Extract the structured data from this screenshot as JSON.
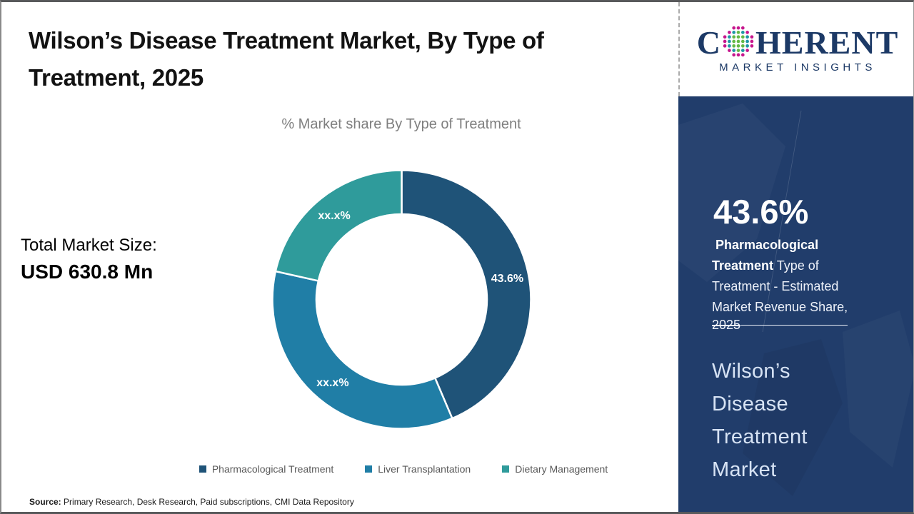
{
  "header": {
    "title": "Wilson’s Disease Treatment Market, By Type of Treatment, 2025",
    "subtitle": "% Market share By Type of Treatment"
  },
  "market_size": {
    "label": "Total Market Size:",
    "value": "USD 630.8 Mn"
  },
  "chart_data": {
    "type": "pie",
    "subtype": "donut",
    "title": "% Market share By Type of Treatment",
    "categories": [
      "Pharmacological Treatment",
      "Liver Transplantation",
      "Dietary Management"
    ],
    "values": [
      43.6,
      34.9,
      21.5
    ],
    "slice_labels": [
      "43.6%",
      "xx.x%",
      "xx.x%"
    ],
    "colors": [
      "#1F5378",
      "#207EA6",
      "#2F9B9B"
    ],
    "legend_position": "bottom",
    "start_angle_deg": 0
  },
  "source": {
    "label": "Source:",
    "text": " Primary Research, Desk Research, Paid subscriptions, CMI Data Repository"
  },
  "logo": {
    "letter_c": "C",
    "rest": "HERENT",
    "tagline": "MARKET INSIGHTS"
  },
  "sidebar": {
    "stat_value": "43.6%",
    "stat_desc_bold": "Pharmacological Treatment",
    "stat_desc_rest": " Type of Treatment - Estimated Market Revenue Share,",
    "stat_year": "2025",
    "market_name": "Wilson’s Disease Treatment Market"
  },
  "colors": {
    "sidebar_bg": "#213D6B",
    "logo_navy": "#1C3966",
    "legend_text": "#595959",
    "subtitle_gray": "#7f7f7f"
  }
}
